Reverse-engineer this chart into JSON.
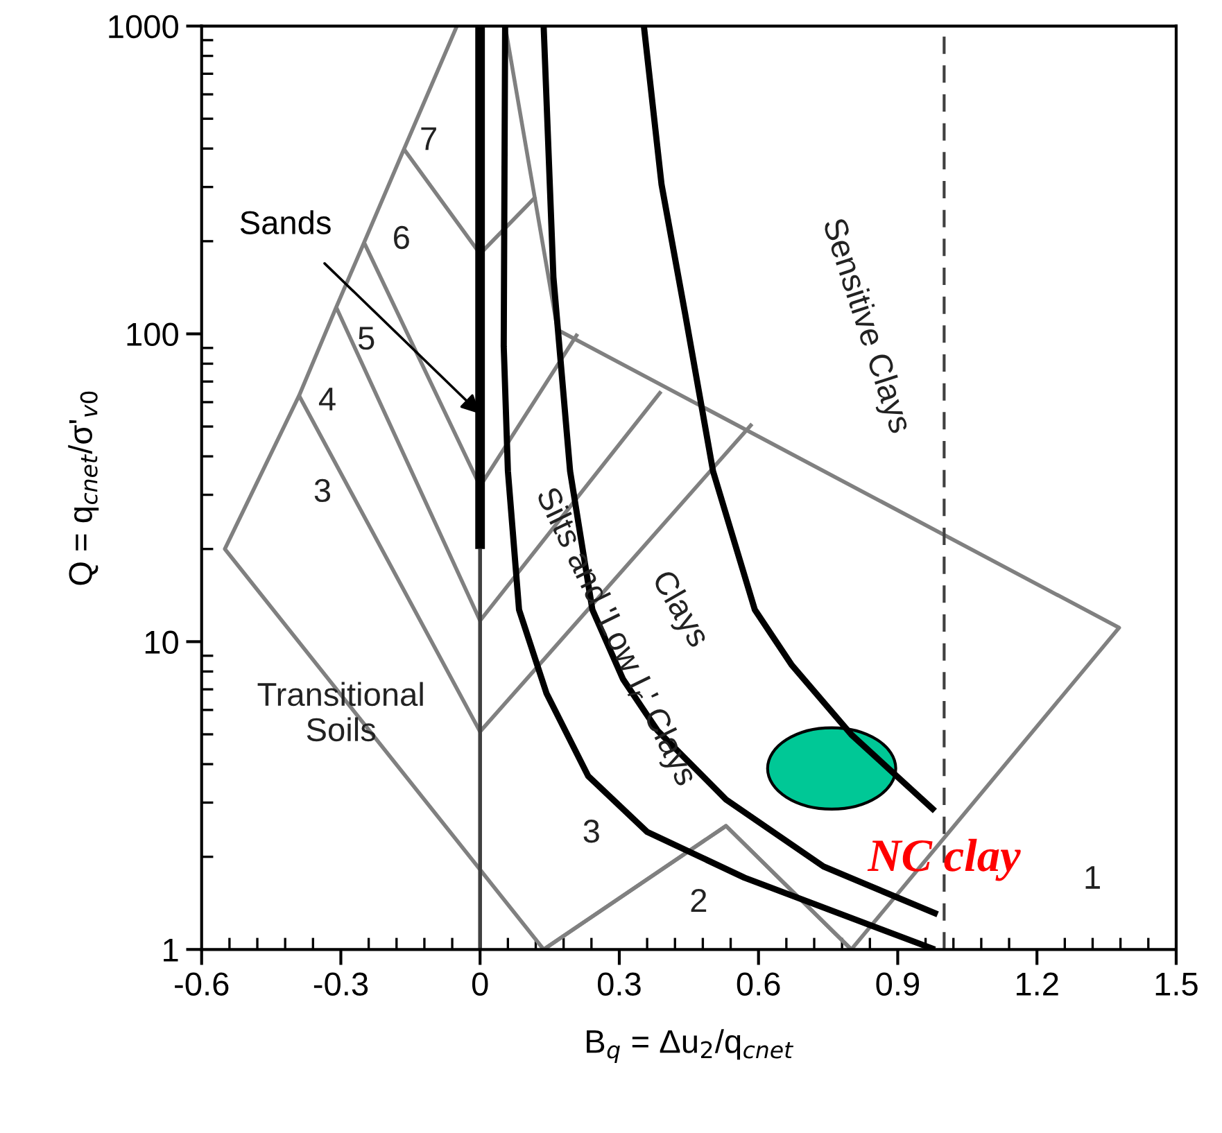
{
  "chart_data": {
    "type": "line",
    "xlabel": "B$_{q}$ = Δu$_{2}$/q$_{cnet}$",
    "ylabel": "Q = q$_{cnet}$/σ'$_{v0}$",
    "log": "y",
    "xlim": [
      -0.6,
      1.5
    ],
    "ylim": [
      1,
      1000
    ],
    "xticks": [
      {
        "value": -0.6,
        "label": "-0.6"
      },
      {
        "value": -0.3,
        "label": "-0.3"
      },
      0,
      0.3,
      0.6,
      0.9,
      1.2,
      1.5
    ],
    "yticks": [
      1,
      10,
      100,
      1000
    ],
    "grid": false,
    "legend": false,
    "marker": "none",
    "line_style": "solid",
    "series": [
      {
        "color": "#808080",
        "x": [
          -0.05,
          -0.164,
          -0.25,
          -0.31,
          -0.39,
          -0.55,
          0.137,
          0.53,
          0.8,
          1.377,
          0.167,
          0.054
        ],
        "values": [
          1000,
          398,
          198,
          122,
          63,
          20,
          1,
          2.52,
          1,
          11.1,
          103,
          1000
        ]
      },
      {
        "color": "#808080",
        "x": [
          -0.39,
          0,
          0.586
        ],
        "values": [
          63,
          5.1,
          51
        ]
      },
      {
        "color": "#808080",
        "x": [
          -0.31,
          0,
          0.39
        ],
        "values": [
          122,
          11.7,
          65
        ]
      },
      {
        "color": "#808080",
        "x": [
          -0.25,
          0,
          0.21
        ],
        "values": [
          198,
          32,
          100
        ]
      },
      {
        "color": "#808080",
        "x": [
          -0.164,
          0,
          0.12
        ],
        "values": [
          398,
          182,
          279
        ]
      },
      {
        "color": "#808080",
        "x": [
          0.137,
          0.53,
          0.8
        ],
        "values": [
          1,
          2.52,
          1
        ]
      },
      {
        "color": "#404040",
        "x": [
          0,
          0
        ],
        "values": [
          1,
          20
        ]
      },
      {
        "color": "#000000",
        "x": [
          0,
          0
        ],
        "values": [
          20,
          1000
        ]
      },
      {
        "color": "#000000",
        "x": [
          0.054,
          0.051,
          0.06,
          0.084,
          0.143,
          0.233,
          0.36,
          0.57,
          0.98
        ],
        "values": [
          1000,
          91,
          35.8,
          12.7,
          6.8,
          3.66,
          2.41,
          1.71,
          1
        ]
      },
      {
        "color": "#000000",
        "x": [
          0.137,
          0.158,
          0.194,
          0.242,
          0.308,
          0.382,
          0.53,
          0.74,
          0.986
        ],
        "values": [
          1000,
          153,
          35.8,
          12.7,
          7.55,
          5.15,
          3.07,
          1.86,
          1.3
        ]
      },
      {
        "color": "#000000",
        "x": [
          0.353,
          0.391,
          0.442,
          0.502,
          0.592,
          0.672,
          0.8,
          0.98
        ],
        "values": [
          1000,
          306,
          116,
          35.8,
          12.7,
          8.38,
          4.99,
          2.82
        ]
      }
    ],
    "ref_lines": [
      {
        "axis": "x",
        "value": 1.0,
        "color": "#404040",
        "line_style": "dashed"
      }
    ],
    "annotations": [
      "7",
      "6",
      "5",
      "4",
      "3",
      {
        "text": "Sands",
        "x": 0,
        "y": 55
      },
      "Transitional\nSoils",
      "Silts and 'Low I$_{r}$' Clays",
      "Clays",
      "Sensitive Clays",
      "3",
      "2",
      "1",
      "NC clay"
    ]
  }
}
